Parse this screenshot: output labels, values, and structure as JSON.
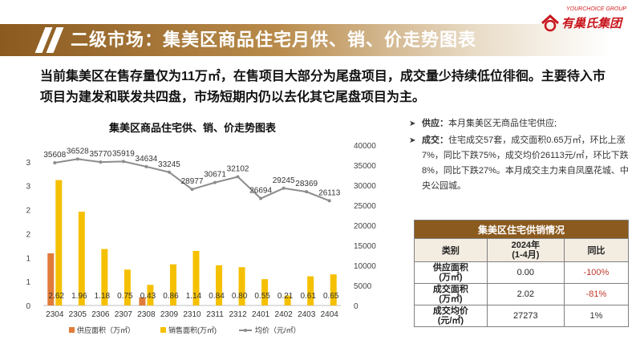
{
  "header": {
    "title": "二级市场：集美区商品住宅月供、销、价走势图表",
    "logo_small": "YOURCHOICE GROUP",
    "logo_main": "有巢氏集团"
  },
  "headline": "当前集美区在售存量仅为11万㎡，在售项目大部分为尾盘项目，成交量少持续低位徘徊。主要待入市项目为建发和联发共四盘，市场短期内仍以去化其它尾盘项目为主。",
  "bullets": [
    {
      "label": "供应：",
      "text": "本月集美区无商品住宅供应;"
    },
    {
      "label": "成交：",
      "text": "住宅成交57套，成交面积0.65万㎡，环比上涨7%，同比下跌75%，成交均价26113元/㎡，环比下跌8%，同比下跌27%。本月成交主力来自凤凰花城、中央公园城。"
    }
  ],
  "table": {
    "caption": "集美区住宅供销情况",
    "headers": [
      "类别",
      "2024年\n(1-4月)",
      "同比"
    ],
    "rows": [
      {
        "name": "供应面积\n(万㎡)",
        "value": "0.00",
        "yoy": "-100%",
        "yoy_color": "#c0392b"
      },
      {
        "name": "成交面积\n(万㎡)",
        "value": "2.02",
        "yoy": "-81%",
        "yoy_color": "#c0392b"
      },
      {
        "name": "成交均价\n(元/㎡)",
        "value": "27273",
        "yoy": "1%",
        "yoy_color": "#333333"
      }
    ]
  },
  "chart_data": {
    "type": "bar",
    "title": "集美区商品住宅供、销、价走势图表",
    "categories": [
      "2304",
      "2305",
      "2306",
      "2307",
      "2308",
      "2309",
      "2310",
      "2311",
      "2312",
      "2401",
      "2402",
      "2403",
      "2404"
    ],
    "series": [
      {
        "name": "供应面积（万㎡）",
        "type": "bar",
        "axis": "left",
        "color": "#e07b39",
        "values": [
          1.09,
          0,
          0,
          0,
          0.17,
          0,
          0,
          0,
          0,
          0,
          0,
          0,
          0
        ]
      },
      {
        "name": "销售面积(万㎡)",
        "type": "bar",
        "axis": "left",
        "color": "#f5c000",
        "values": [
          2.62,
          1.96,
          1.18,
          0.75,
          0.43,
          0.86,
          1.14,
          0.84,
          0.8,
          0.55,
          0.21,
          0.61,
          0.65
        ],
        "labels": [
          "2.62",
          "1.96",
          "1.18",
          "0.75",
          "0.43",
          "0.86",
          "1.14",
          "0.84",
          "0.80",
          "0.55",
          "0.21",
          "0.61",
          "0.65"
        ]
      },
      {
        "name": "均价（元/㎡）",
        "type": "line",
        "axis": "right",
        "color": "#8c8c8c",
        "values": [
          35608,
          36528,
          35770,
          35919,
          34634,
          33245,
          28977,
          30671,
          32102,
          26694,
          29245,
          28369,
          26113
        ]
      }
    ],
    "left_axis": {
      "ticks": [
        "0",
        "1",
        "1",
        "2",
        "2",
        "3",
        "3"
      ],
      "ylim": [
        0,
        3.35
      ]
    },
    "right_axis": {
      "ticks": [
        "0",
        "5000",
        "10000",
        "15000",
        "20000",
        "25000",
        "30000",
        "35000",
        "40000"
      ],
      "ylim": [
        0,
        40000
      ]
    },
    "legend": "bottom"
  }
}
